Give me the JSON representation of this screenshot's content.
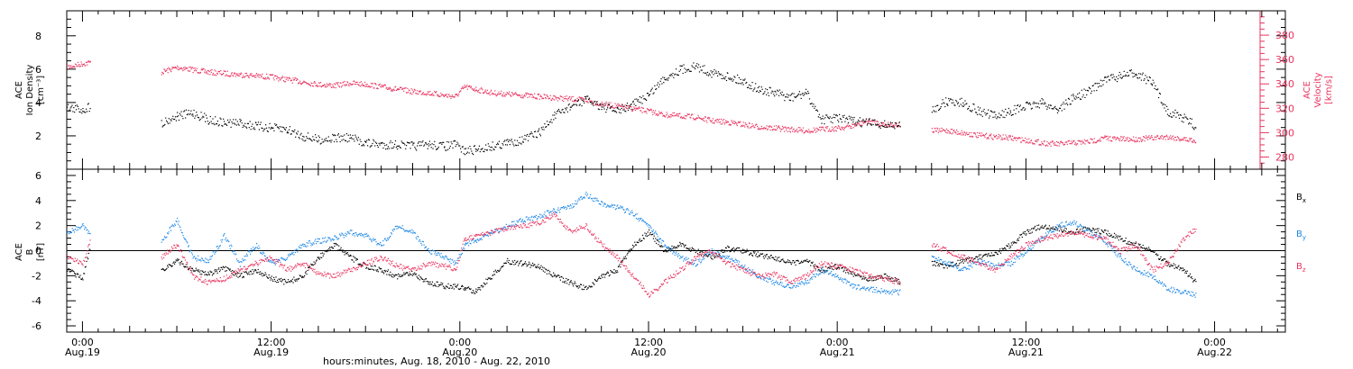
{
  "colors": {
    "black": "#000000",
    "red": "#e8345f",
    "blue": "#1e88e5"
  },
  "x_axis": {
    "title": "hours:minutes, Aug. 18, 2010 - Aug. 22, 2010",
    "ticks": [
      {
        "t": 0,
        "time": "0:00",
        "date": "Aug.19"
      },
      {
        "t": 12,
        "time": "12:00",
        "date": "Aug.19"
      },
      {
        "t": 24,
        "time": "0:00",
        "date": "Aug.20"
      },
      {
        "t": 36,
        "time": "12:00",
        "date": "Aug.20"
      },
      {
        "t": 48,
        "time": "0:00",
        "date": "Aug.21"
      },
      {
        "t": 60,
        "time": "12:00",
        "date": "Aug.21"
      },
      {
        "t": 72,
        "time": "0:00",
        "date": "Aug.22"
      }
    ]
  },
  "chart_data": [
    {
      "type": "scatter",
      "panel": "top",
      "ylabel_left": [
        "ACE",
        "Ion Density",
        "[cm⁻³]"
      ],
      "ylabel_right": [
        "ACE",
        "Velocity",
        "[km/s]"
      ],
      "ylim_left": [
        0,
        9.5
      ],
      "yticks_left": [
        2,
        4,
        6,
        8
      ],
      "ylim_right": [
        270,
        400
      ],
      "yticks_right": [
        280,
        300,
        320,
        340,
        360,
        380
      ],
      "xlim": [
        -1,
        76.5
      ],
      "series": [
        {
          "axis": "left",
          "color": "#000000",
          "x": [
            -1,
            0,
            0.5,
            5,
            6,
            7,
            8,
            9,
            10,
            11,
            12,
            13,
            14,
            15,
            16,
            17,
            18,
            19,
            20,
            21,
            22,
            23,
            23.7,
            24.3,
            25,
            26,
            27,
            28,
            29,
            30,
            31,
            32,
            33,
            34,
            35,
            36,
            37,
            38,
            39,
            40,
            41,
            42,
            43,
            44,
            45,
            46,
            47,
            48,
            49,
            50,
            51,
            52,
            53,
            54,
            55,
            56,
            57,
            58,
            59,
            60,
            61,
            62,
            63,
            64,
            65,
            66,
            67,
            68,
            69,
            70,
            70.8
          ],
          "y": [
            3.7,
            3.6,
            3.8,
            2.8,
            3.2,
            3.4,
            3.0,
            2.8,
            2.8,
            2.6,
            2.5,
            2.4,
            2.0,
            1.8,
            1.9,
            1.9,
            1.6,
            1.5,
            1.5,
            1.4,
            1.5,
            1.4,
            1.5,
            1.1,
            1.2,
            1.4,
            1.6,
            1.8,
            2.2,
            3.2,
            3.8,
            4.2,
            3.8,
            3.5,
            3.9,
            4.5,
            5.5,
            6.0,
            6.2,
            5.8,
            5.6,
            5.3,
            4.8,
            4.6,
            4.3,
            4.6,
            3.0,
            3.1,
            2.9,
            2.8,
            2.7,
            2.6,
            null,
            3.6,
            4.1,
            4.0,
            3.5,
            3.2,
            3.5,
            3.8,
            4.0,
            3.6,
            4.3,
            4.7,
            5.4,
            5.6,
            5.8,
            5.2,
            3.5,
            3.1,
            2.6
          ]
        },
        {
          "axis": "right",
          "color": "#e8345f",
          "x": [
            -1,
            0,
            0.5,
            5,
            6,
            7,
            8,
            9,
            10,
            11,
            12,
            13,
            14,
            15,
            16,
            17,
            18,
            19,
            20,
            21,
            22,
            23,
            23.7,
            24.3,
            25,
            26,
            27,
            28,
            29,
            30,
            31,
            32,
            33,
            34,
            35,
            36,
            37,
            38,
            39,
            40,
            41,
            42,
            43,
            44,
            45,
            46,
            47,
            48,
            49,
            50,
            51,
            52,
            53,
            54,
            55,
            56,
            57,
            58,
            59,
            60,
            61,
            62,
            63,
            64,
            65,
            66,
            67,
            68,
            69,
            70,
            70.8
          ],
          "y": [
            354,
            357,
            358,
            350,
            354,
            352,
            350,
            349,
            348,
            347,
            346,
            344,
            342,
            340,
            339,
            341,
            340,
            338,
            336,
            334,
            333,
            331,
            330,
            338,
            336,
            333,
            332,
            331,
            330,
            329,
            328,
            327,
            324,
            322,
            320,
            318,
            315,
            314,
            313,
            310,
            309,
            307,
            305,
            304,
            303,
            302,
            303,
            304,
            306,
            310,
            307,
            307,
            null,
            302,
            302,
            300,
            298,
            297,
            296,
            294,
            292,
            291,
            292,
            293,
            296,
            295,
            295,
            296,
            297,
            295,
            294
          ]
        }
      ]
    },
    {
      "type": "scatter",
      "panel": "bottom",
      "ylabel": [
        "ACE",
        "B",
        "[nT]"
      ],
      "ylim": [
        -6.5,
        6.5
      ],
      "yticks": [
        -6,
        -4,
        -2,
        0,
        2,
        4,
        6
      ],
      "zero_line": true,
      "xlim": [
        -1,
        76.5
      ],
      "legend": [
        {
          "label": "Bx",
          "color": "#000000"
        },
        {
          "label": "By",
          "color": "#1e88e5"
        },
        {
          "label": "Bz",
          "color": "#e8345f"
        }
      ],
      "series": [
        {
          "name": "Bx",
          "color": "#000000",
          "x": [
            -1,
            0,
            0.5,
            5,
            6,
            7,
            8,
            9,
            10,
            11,
            12,
            13,
            14,
            15,
            16,
            17,
            18,
            19,
            20,
            21,
            22,
            23,
            23.7,
            24.3,
            25,
            26,
            27,
            28,
            29,
            30,
            31,
            32,
            33,
            34,
            35,
            36,
            37,
            38,
            39,
            40,
            41,
            42,
            43,
            44,
            45,
            46,
            47,
            48,
            49,
            50,
            51,
            52,
            53,
            54,
            55,
            56,
            57,
            58,
            59,
            60,
            61,
            62,
            63,
            64,
            65,
            66,
            67,
            68,
            69,
            70,
            70.8
          ],
          "y": [
            -1.5,
            -2.2,
            0.5,
            -1.5,
            -0.8,
            -1.5,
            -1.8,
            -1.4,
            -2.0,
            -1.5,
            -2.2,
            -2.5,
            -2.0,
            -0.5,
            0.5,
            -0.5,
            -1.2,
            -1.5,
            -2.0,
            -1.8,
            -2.5,
            -2.8,
            -2.8,
            -3.0,
            -3.2,
            -2.0,
            -0.8,
            -1.0,
            -1.2,
            -2.0,
            -2.5,
            -3.0,
            -2.0,
            -1.5,
            0.5,
            1.5,
            0.0,
            0.5,
            0.0,
            -0.5,
            0.2,
            0.0,
            -0.3,
            -0.5,
            -1.0,
            -0.8,
            -1.5,
            -1.2,
            -1.8,
            -2.2,
            -2.0,
            -2.5,
            null,
            -1.0,
            -1.2,
            -0.8,
            -0.5,
            -0.3,
            0.5,
            1.5,
            2.0,
            1.8,
            1.5,
            1.8,
            1.5,
            1.0,
            0.5,
            0.0,
            -1.0,
            -1.5,
            -2.5
          ]
        },
        {
          "name": "By",
          "color": "#1e88e5",
          "x": [
            -1,
            0,
            0.5,
            5,
            6,
            7,
            8,
            9,
            10,
            11,
            12,
            13,
            14,
            15,
            16,
            17,
            18,
            19,
            20,
            21,
            22,
            23,
            23.7,
            24.3,
            25,
            26,
            27,
            28,
            29,
            30,
            31,
            32,
            33,
            34,
            35,
            36,
            37,
            38,
            39,
            40,
            41,
            42,
            43,
            44,
            45,
            46,
            47,
            48,
            49,
            50,
            51,
            52,
            53,
            54,
            55,
            56,
            57,
            58,
            59,
            60,
            61,
            62,
            63,
            64,
            65,
            66,
            67,
            68,
            69,
            70,
            70.8
          ],
          "y": [
            1.5,
            2.0,
            1.2,
            0.8,
            2.5,
            -0.5,
            -0.8,
            1.2,
            -1.0,
            0.5,
            -1.0,
            -0.5,
            0.5,
            0.8,
            1.0,
            1.5,
            1.2,
            0.5,
            2.0,
            1.5,
            0.0,
            -0.5,
            -1.0,
            0.5,
            0.8,
            1.5,
            2.0,
            2.5,
            2.8,
            3.2,
            3.5,
            4.5,
            3.8,
            3.5,
            3.0,
            2.0,
            0.5,
            -0.5,
            -1.0,
            0.0,
            -0.5,
            -1.2,
            -2.0,
            -2.5,
            -2.8,
            -2.5,
            -1.5,
            -2.0,
            -2.8,
            -3.0,
            -3.2,
            -3.3,
            null,
            -0.5,
            -1.0,
            -1.5,
            -0.8,
            -1.2,
            -1.0,
            0.0,
            1.0,
            2.0,
            2.3,
            1.5,
            0.8,
            -0.5,
            -1.5,
            -2.0,
            -3.0,
            -3.3,
            -3.5
          ]
        },
        {
          "name": "Bz",
          "color": "#e8345f",
          "x": [
            -1,
            0,
            0.5,
            5,
            6,
            7,
            8,
            9,
            10,
            11,
            12,
            13,
            14,
            15,
            16,
            17,
            18,
            19,
            20,
            21,
            22,
            23,
            23.7,
            24.3,
            25,
            26,
            27,
            28,
            29,
            30,
            31,
            32,
            33,
            34,
            35,
            36,
            37,
            38,
            39,
            40,
            41,
            42,
            43,
            44,
            45,
            46,
            47,
            48,
            49,
            50,
            51,
            52,
            53,
            54,
            55,
            56,
            57,
            58,
            59,
            60,
            61,
            62,
            63,
            64,
            65,
            66,
            67,
            68,
            69,
            70,
            70.8
          ],
          "y": [
            -0.5,
            -1.0,
            1.0,
            -0.5,
            0.5,
            -2.0,
            -2.5,
            -2.2,
            -1.5,
            -1.0,
            -0.5,
            -1.5,
            -1.0,
            -1.8,
            -2.0,
            -1.5,
            -1.0,
            -0.5,
            -1.2,
            -1.5,
            -1.0,
            -1.2,
            -1.5,
            1.0,
            1.2,
            1.5,
            1.8,
            2.0,
            2.2,
            3.0,
            1.5,
            2.0,
            0.5,
            -0.5,
            -2.0,
            -3.5,
            -2.5,
            -1.5,
            -0.5,
            0.0,
            -1.0,
            -1.5,
            -2.0,
            -1.8,
            -2.5,
            -2.0,
            -1.0,
            -1.2,
            -1.5,
            -2.0,
            -2.2,
            -2.5,
            null,
            0.5,
            0.0,
            -0.5,
            -1.0,
            -1.5,
            -0.5,
            0.5,
            1.0,
            1.2,
            1.5,
            1.2,
            1.0,
            0.0,
            0.5,
            -1.5,
            -1.0,
            1.0,
            1.8
          ]
        }
      ]
    }
  ]
}
